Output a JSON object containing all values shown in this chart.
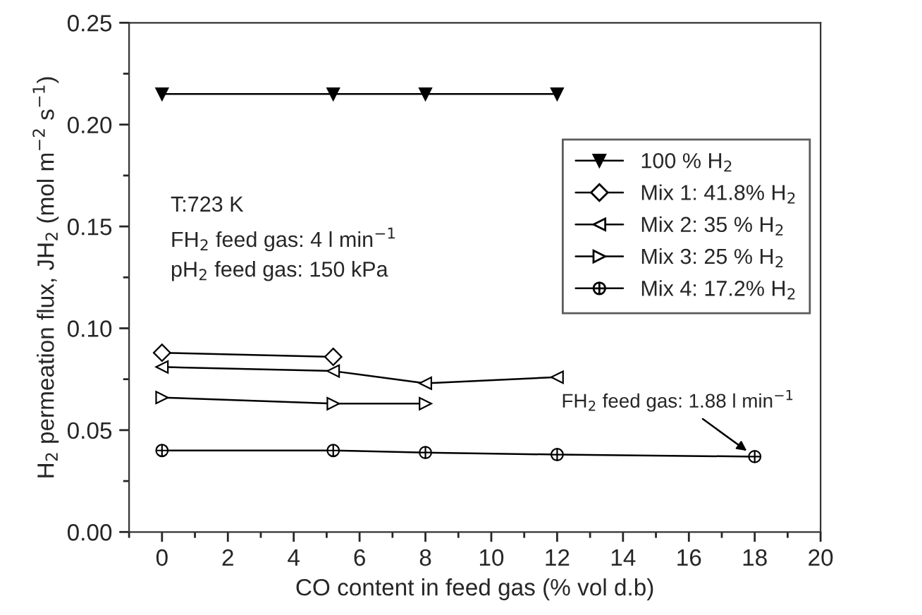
{
  "chart_data": {
    "type": "line",
    "xlabel": "CO content in feed gas (% vol d.b)",
    "ylabel": "H$_{2}$ permeation flux, JH$_{2}$ (mol m$^{−2}$ s$^{−1}$)",
    "xlim": [
      -1,
      20
    ],
    "xticks": [
      0,
      2,
      4,
      6,
      8,
      10,
      12,
      14,
      16,
      18,
      20
    ],
    "ylim": [
      0,
      0.25
    ],
    "yticks": [
      {
        "value": 0,
        "label": "0.00"
      },
      {
        "value": 0.05,
        "label": "0.05"
      },
      {
        "value": 0.1,
        "label": "0.10"
      },
      {
        "value": 0.15,
        "label": "0.15"
      },
      {
        "value": 0.2,
        "label": "0.20"
      },
      {
        "value": 0.25,
        "label": "0.25"
      }
    ],
    "legend": "right",
    "grid": false,
    "line_style": "solid",
    "series": [
      {
        "name": "100 % H$_{2}$",
        "color": "#000000",
        "marker": "triangle_down_filled",
        "x": [
          0,
          5.2,
          8,
          12
        ],
        "values": [
          0.215,
          0.215,
          0.215,
          0.215
        ]
      },
      {
        "name": "Mix 1: 41.8% H$_{2}$",
        "color": "#000000",
        "marker": "diamond",
        "x": [
          0,
          5.2
        ],
        "values": [
          0.088,
          0.086
        ]
      },
      {
        "name": "Mix 2: 35 % H$_{2}$",
        "color": "#000000",
        "marker": "triangle_left",
        "x": [
          0,
          5.2,
          8,
          12
        ],
        "values": [
          0.081,
          0.079,
          0.073,
          0.076
        ]
      },
      {
        "name": "Mix 3: 25 % H$_{2}$",
        "color": "#000000",
        "marker": "triangle_right",
        "x": [
          0,
          5.2,
          8
        ],
        "values": [
          0.066,
          0.063,
          0.063
        ]
      },
      {
        "name": "Mix 4: 17.2% H$_{2}$",
        "color": "#000000",
        "marker": "cross",
        "x": [
          0,
          5.2,
          8,
          12,
          18
        ],
        "values": [
          0.04,
          0.04,
          0.039,
          0.038,
          0.037
        ]
      }
    ],
    "annotations": [
      "T:723 K\nFH$_{2}$ feed gas: 4 l min$^{−1}$\npH$_{2}$ feed gas: 150 kPa",
      {
        "text": "FH$_{2}$ feed gas: 1.88 l min$^{−1}$",
        "x": 18,
        "y": 0.037
      }
    ]
  }
}
